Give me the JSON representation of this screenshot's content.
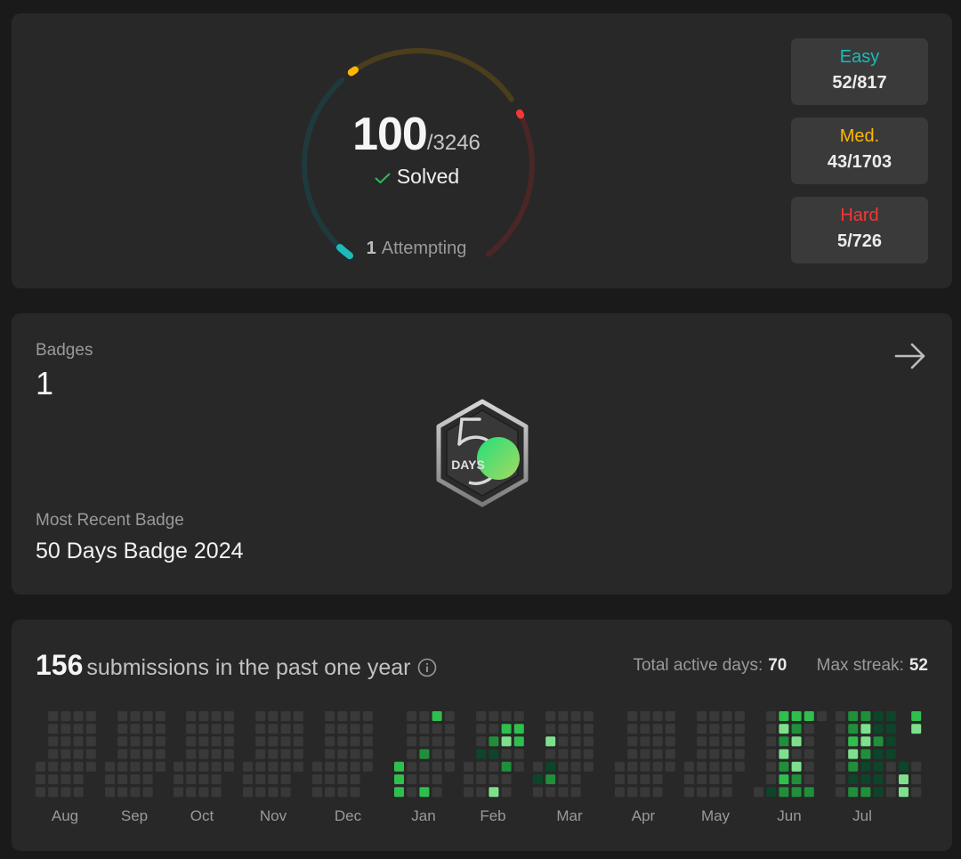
{
  "progress": {
    "solved": "100",
    "total": "/3246",
    "solved_label": "Solved",
    "attempting_count": "1",
    "attempting_label": "Attempting",
    "solved_fraction": 0.031,
    "difficulties": [
      {
        "label": "Easy",
        "value": "52/817",
        "color": "#1cbaba"
      },
      {
        "label": "Med.",
        "value": "43/1703",
        "color": "#ffb700"
      },
      {
        "label": "Hard",
        "value": "5/726",
        "color": "#f63737"
      }
    ]
  },
  "badges": {
    "label": "Badges",
    "count": "1",
    "recent_label": "Most Recent Badge",
    "recent_name": "50 Days Badge 2024",
    "badge_text": "DAYS"
  },
  "heatmap": {
    "count": "156",
    "text": "submissions in the past one year",
    "active_label": "Total active days:",
    "active_value": "70",
    "streak_label": "Max streak:",
    "streak_value": "52",
    "months": [
      "Aug",
      "Sep",
      "Oct",
      "Nov",
      "Dec",
      "Jan",
      "Feb",
      "Mar",
      "Apr",
      "May",
      "Jun",
      "Jul"
    ],
    "colors": {
      "empty": "#393939",
      "low": "#0e4429",
      "mid": "#1f8f3a",
      "high": "#2fbf4d",
      "top": "#7ee08c"
    }
  }
}
